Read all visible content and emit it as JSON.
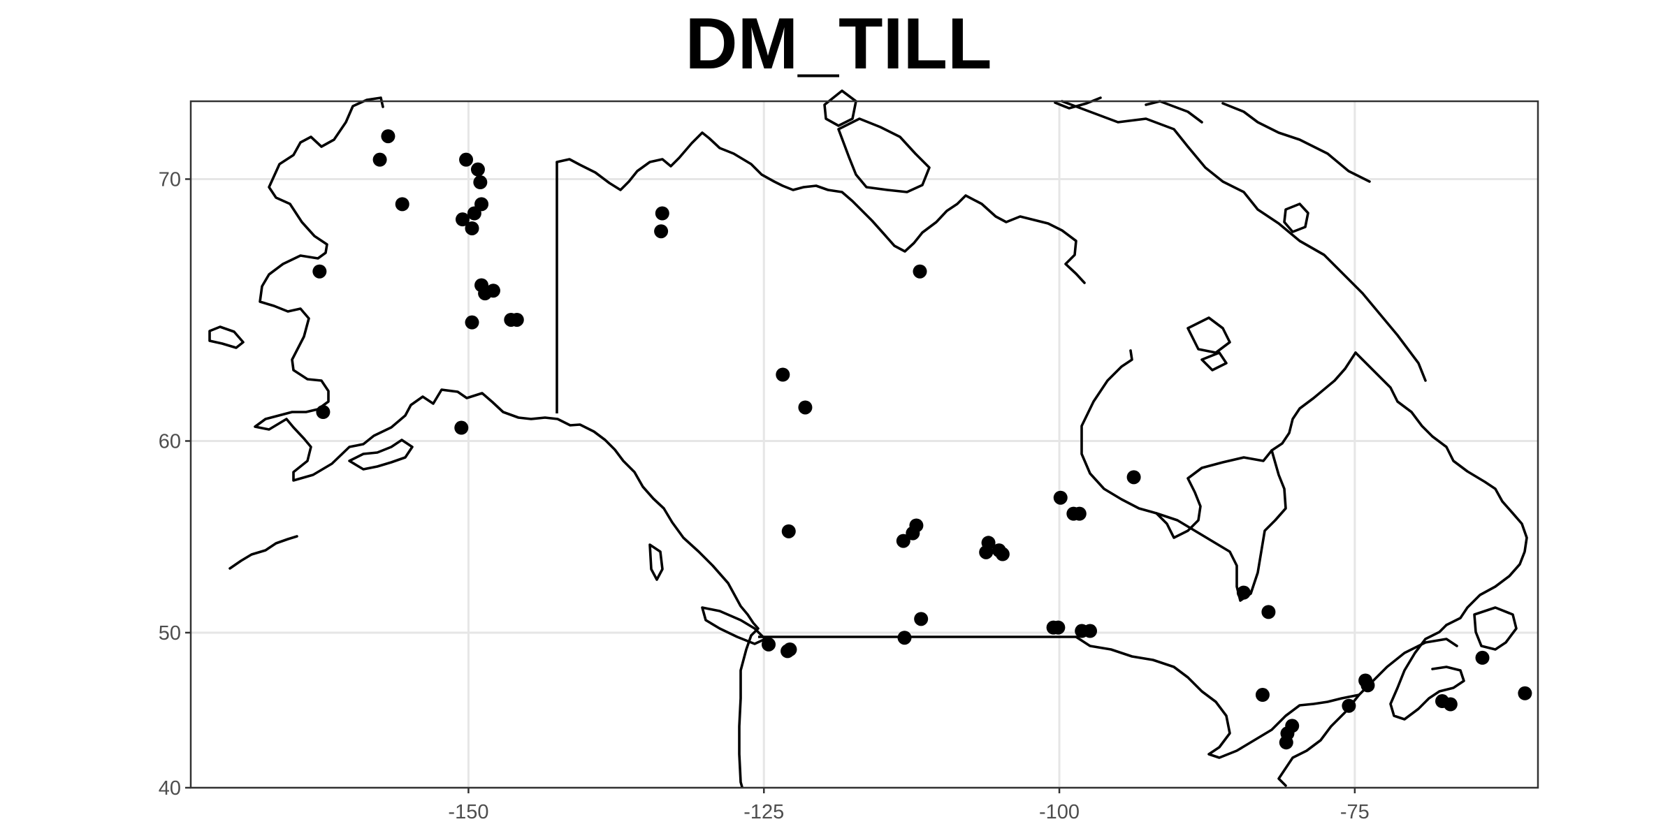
{
  "map": {
    "title": "DM_TILL",
    "extent": {
      "lon": [
        -173.5,
        -59.5
      ],
      "lat": [
        40.0,
        72.3
      ]
    },
    "x_ticks": [
      {
        "value": -150,
        "label": "-150"
      },
      {
        "value": -125,
        "label": "-125"
      },
      {
        "value": -100,
        "label": "-100"
      },
      {
        "value": -75,
        "label": "-75"
      }
    ],
    "y_ticks": [
      {
        "value": 40,
        "label": "40"
      },
      {
        "value": 50,
        "label": "50"
      },
      {
        "value": 60,
        "label": "60"
      },
      {
        "value": 70,
        "label": "70"
      }
    ],
    "colors": {
      "points": "#000000",
      "outline": "#000000",
      "grid": "#e6e6e6",
      "panel_border": "#333333"
    },
    "sample_sites": [
      [
        -156.8,
        71.3
      ],
      [
        -157.5,
        70.6
      ],
      [
        -155.6,
        69.2
      ],
      [
        -150.2,
        70.6
      ],
      [
        -149.2,
        70.3
      ],
      [
        -149.0,
        69.9
      ],
      [
        -148.9,
        69.2
      ],
      [
        -149.5,
        68.9
      ],
      [
        -150.5,
        68.7
      ],
      [
        -149.7,
        68.4
      ],
      [
        -162.6,
        66.9
      ],
      [
        -148.9,
        66.4
      ],
      [
        -147.9,
        66.2
      ],
      [
        -148.6,
        66.1
      ],
      [
        -146.4,
        65.1
      ],
      [
        -145.9,
        65.1
      ],
      [
        -149.7,
        65.0
      ],
      [
        -162.3,
        61.3
      ],
      [
        -150.6,
        60.6
      ],
      [
        -133.6,
        68.9
      ],
      [
        -133.7,
        68.3
      ],
      [
        -111.8,
        66.9
      ],
      [
        -123.4,
        62.9
      ],
      [
        -121.5,
        61.5
      ],
      [
        -122.9,
        55.6
      ],
      [
        -112.1,
        55.9
      ],
      [
        -112.4,
        55.5
      ],
      [
        -113.2,
        55.1
      ],
      [
        -106.0,
        55.0
      ],
      [
        -105.1,
        54.6
      ],
      [
        -106.2,
        54.5
      ],
      [
        -104.8,
        54.4
      ],
      [
        -99.9,
        57.3
      ],
      [
        -98.8,
        56.5
      ],
      [
        -98.3,
        56.5
      ],
      [
        -93.7,
        58.3
      ],
      [
        -124.6,
        49.3
      ],
      [
        -123.0,
        48.9
      ],
      [
        -122.8,
        49.0
      ],
      [
        -111.7,
        50.8
      ],
      [
        -113.1,
        49.7
      ],
      [
        -100.5,
        50.3
      ],
      [
        -100.1,
        50.3
      ],
      [
        -98.1,
        50.1
      ],
      [
        -97.4,
        50.1
      ],
      [
        -84.4,
        52.3
      ],
      [
        -82.3,
        51.2
      ],
      [
        -82.8,
        46.2
      ],
      [
        -80.3,
        44.2
      ],
      [
        -80.7,
        43.7
      ],
      [
        -80.8,
        43.1
      ],
      [
        -75.5,
        45.5
      ],
      [
        -74.1,
        47.1
      ],
      [
        -73.9,
        46.8
      ],
      [
        -67.6,
        45.8
      ],
      [
        -66.9,
        45.6
      ],
      [
        -64.2,
        48.5
      ],
      [
        -60.6,
        46.3
      ]
    ]
  }
}
